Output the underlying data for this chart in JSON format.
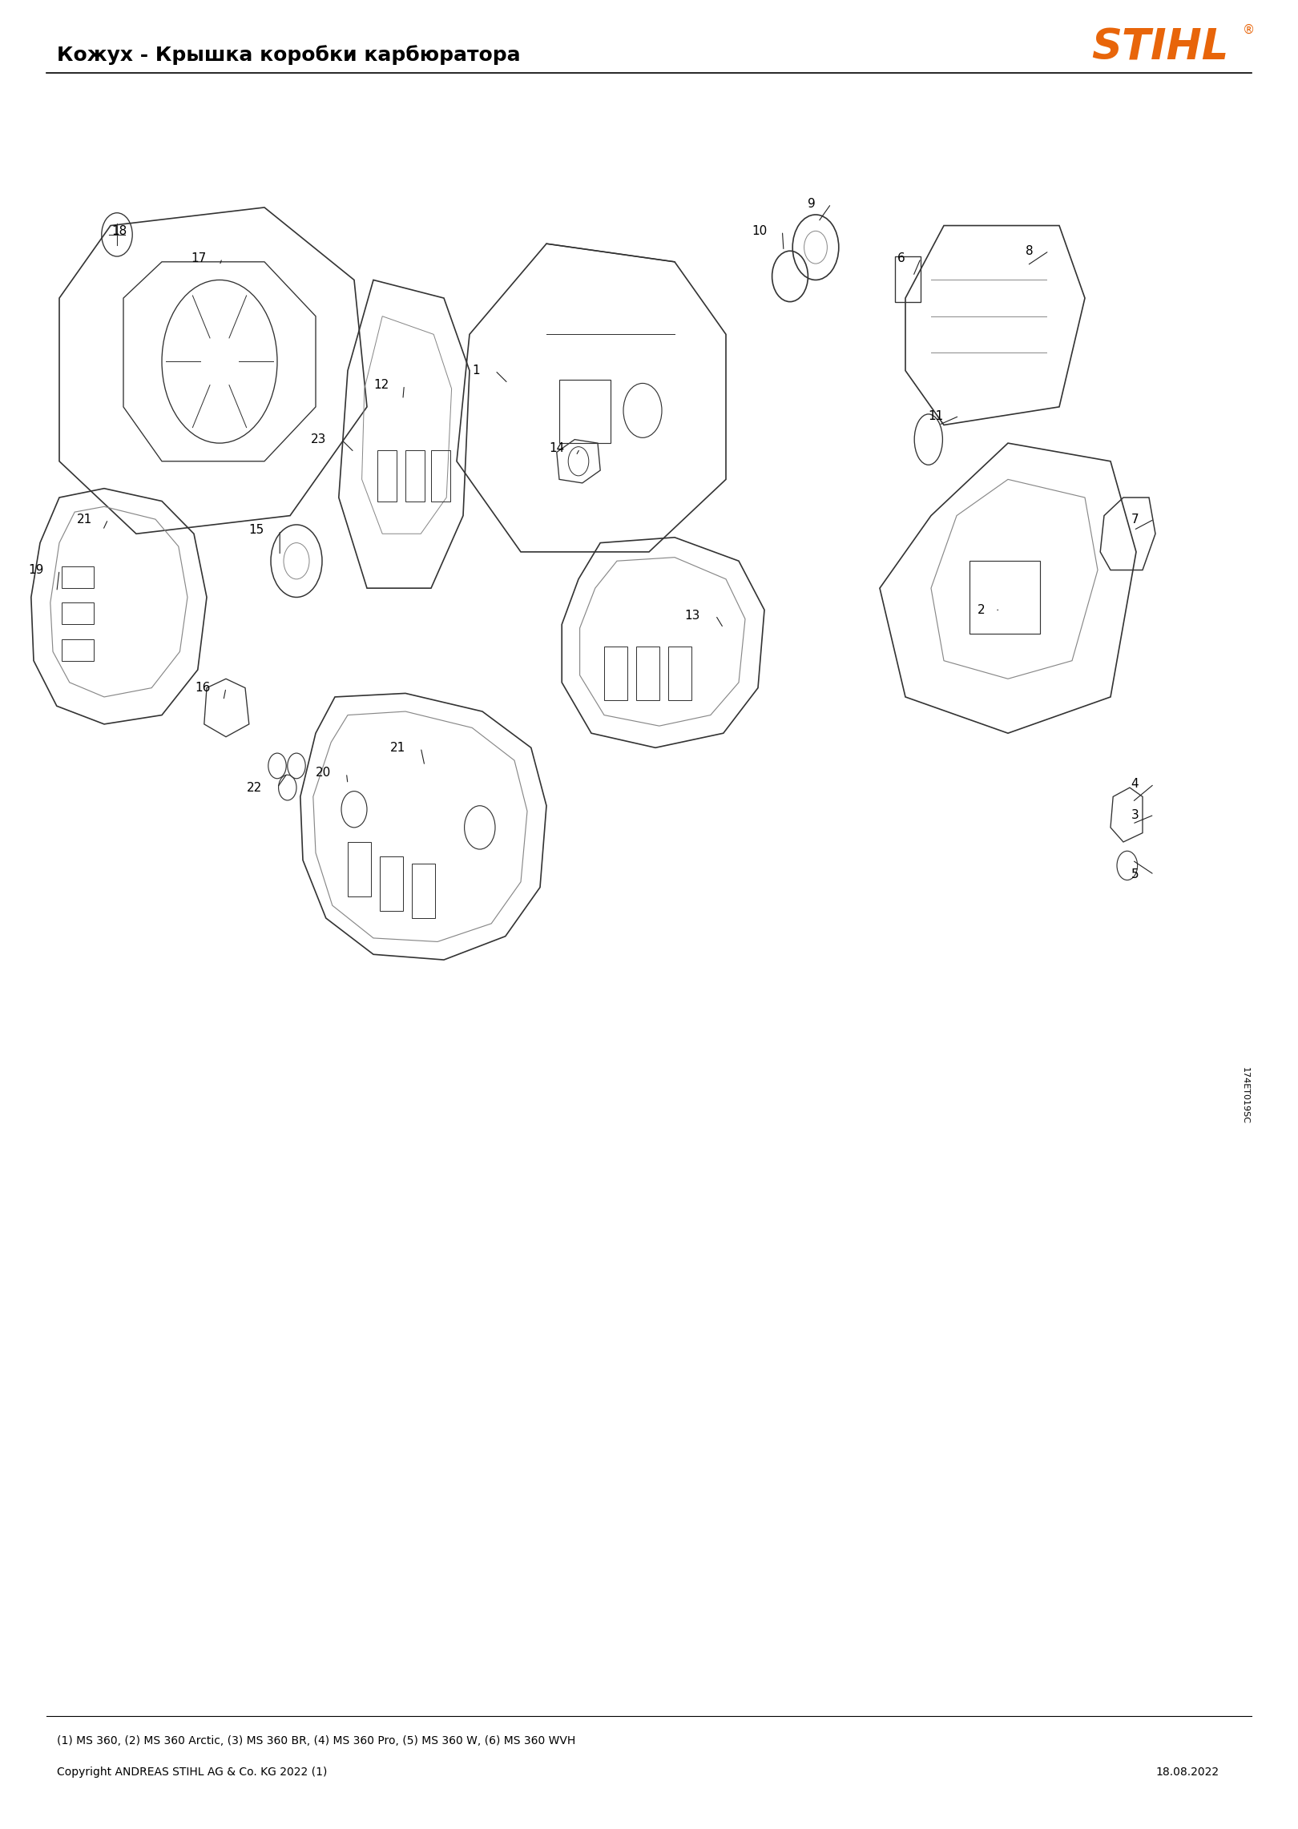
{
  "title": "Кожух - Крышка коробки карбюратора",
  "stihl_color": "#E8650A",
  "background_color": "#FFFFFF",
  "border_color": "#000000",
  "title_fontsize": 18,
  "subtitle": "(1) MS 360, (2) MS 360 Arctic, (3) MS 360 BR, (4) MS 360 Pro, (5) MS 360 W, (6) MS 360 WVH",
  "copyright": "Copyright ANDREAS STIHL AG & Co. KG 2022 (1)",
  "date": "18.08.2022",
  "diagram_code": "174ET019SC"
}
